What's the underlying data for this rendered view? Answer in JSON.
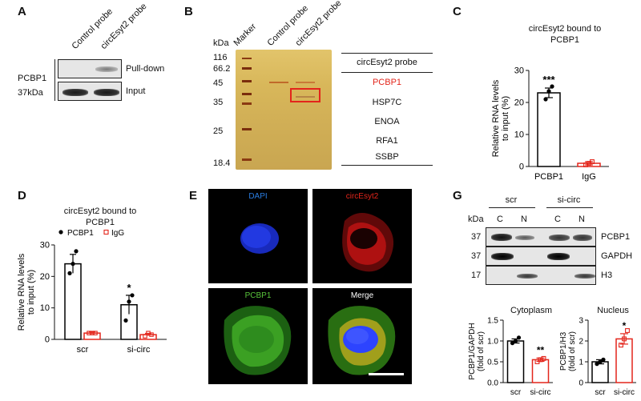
{
  "panel_a": {
    "letter": "A",
    "lanes": [
      "Control probe",
      "circEsyt2 probe"
    ],
    "protein": "PCBP1",
    "mw": "37kDa",
    "rows": [
      "Pull-down",
      "Input"
    ]
  },
  "panel_b": {
    "letter": "B",
    "kda_label": "kDa",
    "markers": [
      "116",
      "66.2",
      "45",
      "35",
      "25",
      "18.4"
    ],
    "lanes": [
      "Marker",
      "Control probe",
      "circEsyt2 probe"
    ],
    "table_title": "circEsyt2 probe",
    "proteins": [
      "PCBP1",
      "HSP7C",
      "ENOA",
      "RFA1",
      "SSBP"
    ],
    "highlight_color": "#e3251b"
  },
  "panel_c": {
    "letter": "C",
    "title_line1": "circEsyt2 bound to",
    "title_line2": "PCBP1",
    "significance": "***",
    "chart_data": {
      "type": "bar",
      "title": "circEsyt2 bound to PCBP1",
      "ylabel": "Relative RNA levels to input (%)",
      "ylabel_line1": "Relative RNA levels",
      "ylabel_line2": "to input (%)",
      "categories": [
        "PCBP1",
        "IgG"
      ],
      "values": [
        23,
        1
      ],
      "errors": [
        1.5,
        0.5
      ],
      "points": [
        [
          21,
          23.5,
          25
        ],
        [
          0.5,
          1,
          1.5
        ]
      ],
      "ylim": [
        0,
        30
      ],
      "yticks": [
        0,
        10,
        20,
        30
      ],
      "colors": [
        "#000000",
        "#e3251b"
      ]
    }
  },
  "panel_d": {
    "letter": "D",
    "title_line1": "circEsyt2 bound to",
    "title_line2": "PCBP1",
    "legend": [
      "PCBP1",
      "IgG"
    ],
    "significance": "*",
    "chart_data": {
      "type": "bar",
      "title": "circEsyt2 bound to PCBP1",
      "ylabel": "Relative RNA levels to input (%)",
      "ylabel_line1": "Relative RNA levels",
      "ylabel_line2": "to input (%)",
      "categories": [
        "scr",
        "si-circ"
      ],
      "series": [
        {
          "name": "PCBP1",
          "values": [
            24,
            11
          ],
          "errors": [
            3,
            3
          ],
          "points": [
            [
              21,
              24,
              28
            ],
            [
              6,
              12,
              14
            ]
          ],
          "color": "#000000"
        },
        {
          "name": "IgG",
          "values": [
            2,
            1.5
          ],
          "errors": [
            0.4,
            0.4
          ],
          "points": [
            [
              2,
              2,
              2
            ],
            [
              1,
              2,
              1.5
            ]
          ],
          "color": "#e3251b"
        }
      ],
      "ylim": [
        0,
        30
      ],
      "yticks": [
        0,
        10,
        20,
        30
      ],
      "legend_position": "top-left"
    }
  },
  "panel_e": {
    "letter": "E",
    "labels": [
      "DAPI",
      "circEsyt2",
      "PCBP1",
      "Merge"
    ],
    "label_colors": [
      "#2a7de1",
      "#e3251b",
      "#58c43a",
      "#ffffff"
    ]
  },
  "panel_g": {
    "letter": "G",
    "groups": [
      "scr",
      "si-circ"
    ],
    "kda_label": "kDa",
    "lanes": [
      "C",
      "N",
      "C",
      "N"
    ],
    "rows": [
      {
        "mw": "37",
        "name": "PCBP1"
      },
      {
        "mw": "37",
        "name": "GAPDH"
      },
      {
        "mw": "17",
        "name": "H3"
      }
    ],
    "cyto_chart": {
      "title": "Cytoplasm",
      "significance": "**",
      "chart_data": {
        "type": "bar",
        "ylabel": "PCBP1/GAPDH (fold of scr)",
        "ylabel_line1": "PCBP1/GAPDH",
        "ylabel_line2": "(fold of scr)",
        "categories": [
          "scr",
          "si-circ"
        ],
        "values": [
          1.0,
          0.55
        ],
        "errors": [
          0.05,
          0.04
        ],
        "points": [
          [
            0.95,
            1.0,
            1.08
          ],
          [
            0.5,
            0.55,
            0.58
          ]
        ],
        "ylim": [
          0,
          1.5
        ],
        "yticks": [
          "0.0",
          "0.5",
          "1.0",
          "1.5"
        ],
        "colors": [
          "#000000",
          "#e3251b"
        ]
      }
    },
    "nuc_chart": {
      "title": "Nucleus",
      "significance": "*",
      "chart_data": {
        "type": "bar",
        "ylabel": "PCBP1/H3 (fold of scr)",
        "ylabel_line1": "PCBP1/H3",
        "ylabel_line2": "(fold of scr)",
        "categories": [
          "scr",
          "si-circ"
        ],
        "values": [
          1.0,
          2.1
        ],
        "errors": [
          0.1,
          0.25
        ],
        "points": [
          [
            0.9,
            1.0,
            1.1
          ],
          [
            1.8,
            2.1,
            2.5
          ]
        ],
        "ylim": [
          0,
          3
        ],
        "yticks": [
          "0",
          "1",
          "2",
          "3"
        ],
        "colors": [
          "#000000",
          "#e3251b"
        ]
      }
    }
  }
}
